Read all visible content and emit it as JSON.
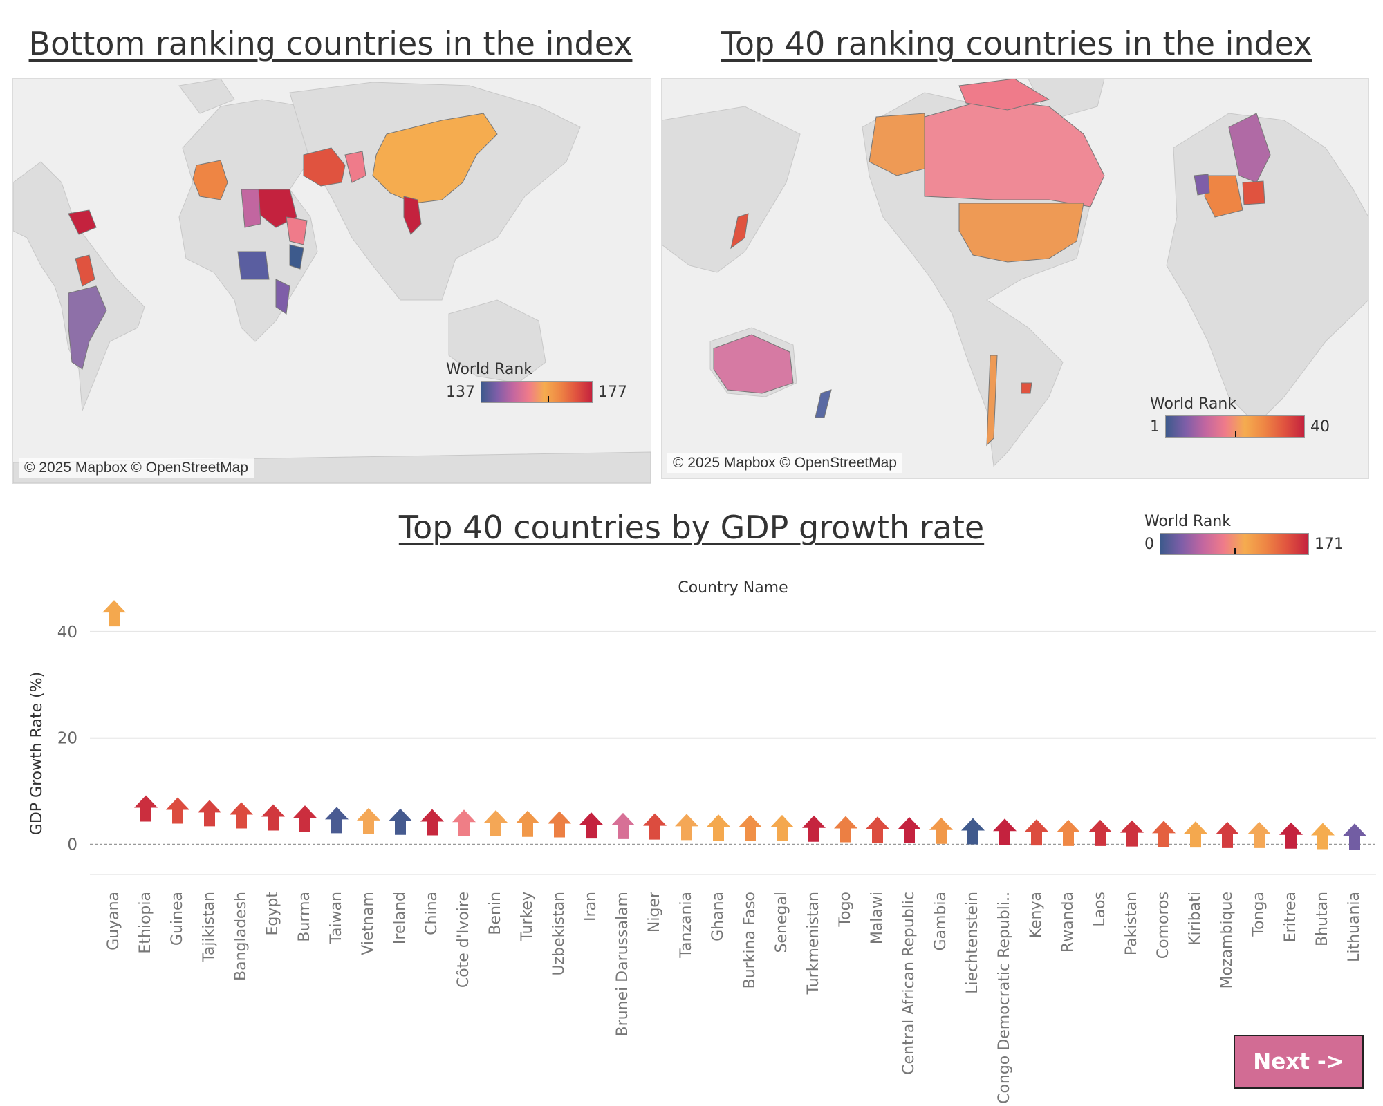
{
  "maps": {
    "bottom": {
      "title": "Bottom ranking countries in the index",
      "attribution": "© 2025 Mapbox © OpenStreetMap",
      "legend": {
        "title": "World Rank",
        "min": "137",
        "max": "177",
        "marker_fraction": 0.6
      }
    },
    "top": {
      "title": "Top 40 ranking countries in the index",
      "attribution": "© 2025 Mapbox © OpenStreetMap",
      "legend": {
        "title": "World Rank",
        "min": "1",
        "max": "40",
        "marker_fraction": 0.5
      }
    }
  },
  "colors": {
    "land": "#dddddd",
    "ocean": "#efefef",
    "ramp": [
      "#3d5a8c",
      "#7e5ea8",
      "#c266a0",
      "#ef7b8a",
      "#f5ac4f",
      "#ee8544",
      "#e0533f",
      "#c4223e"
    ],
    "button": "#d26c94"
  },
  "chart_data": {
    "type": "bar",
    "title": "Top 40 countries by GDP growth rate",
    "xlabel": "Country Name",
    "ylabel": "GDP Growth Rate (%)",
    "ylim": [
      -5,
      47
    ],
    "yticks": [
      "0",
      "20",
      "40"
    ],
    "grid": true,
    "marker": "arrow",
    "legend": {
      "title": "World Rank",
      "min": "0",
      "max": "171",
      "position": "top-right",
      "marker_fraction": 0.5
    },
    "categories": [
      "Guyana",
      "Ethiopia",
      "Guinea",
      "Tajikistan",
      "Bangladesh",
      "Egypt",
      "Burma",
      "Taiwan",
      "Vietnam",
      "Ireland",
      "China",
      "Côte d'Ivoire",
      "Benin",
      "Turkey",
      "Uzbekistan",
      "Iran",
      "Brunei Darussalam",
      "Niger",
      "Tanzania",
      "Ghana",
      "Burkina Faso",
      "Senegal",
      "Turkmenistan",
      "Togo",
      "Malawi",
      "Central African Republic",
      "Gambia",
      "Liechtenstein",
      "Congo Democratic Republi..",
      "Kenya",
      "Rwanda",
      "Laos",
      "Pakistan",
      "Comoros",
      "Kiribati",
      "Mozambique",
      "Tonga",
      "Eritrea",
      "Bhutan",
      "Lithuania"
    ],
    "values": [
      43.6,
      6.9,
      6.5,
      6.0,
      5.6,
      5.2,
      5.0,
      4.7,
      4.5,
      4.4,
      4.3,
      4.2,
      4.1,
      4.0,
      3.9,
      3.7,
      3.6,
      3.5,
      3.4,
      3.3,
      3.2,
      3.2,
      3.1,
      3.0,
      2.9,
      2.8,
      2.7,
      2.6,
      2.5,
      2.4,
      2.3,
      2.3,
      2.2,
      2.1,
      2.0,
      1.9,
      1.9,
      1.8,
      1.7,
      1.6
    ],
    "world_rank": [
      100,
      165,
      150,
      155,
      150,
      160,
      165,
      5,
      95,
      3,
      168,
      75,
      95,
      110,
      125,
      171,
      60,
      150,
      95,
      100,
      115,
      100,
      170,
      125,
      150,
      171,
      110,
      1,
      171,
      150,
      120,
      162,
      163,
      140,
      100,
      158,
      95,
      171,
      98,
      20
    ]
  },
  "next_button": {
    "label": "Next ->"
  }
}
